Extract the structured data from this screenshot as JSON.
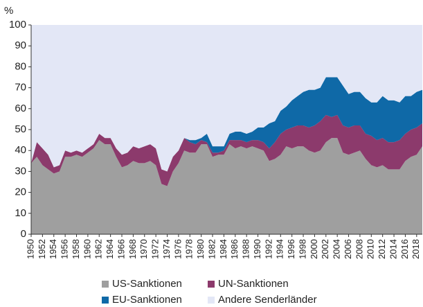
{
  "chart_data": {
    "type": "stacked_area",
    "y_label": "%",
    "x": [
      1950,
      1951,
      1952,
      1953,
      1954,
      1955,
      1956,
      1957,
      1958,
      1959,
      1960,
      1961,
      1962,
      1963,
      1964,
      1965,
      1966,
      1967,
      1968,
      1969,
      1970,
      1971,
      1972,
      1973,
      1974,
      1975,
      1976,
      1977,
      1978,
      1979,
      1980,
      1981,
      1982,
      1983,
      1984,
      1985,
      1986,
      1987,
      1988,
      1989,
      1990,
      1991,
      1992,
      1993,
      1994,
      1995,
      1996,
      1997,
      1998,
      1999,
      2000,
      2001,
      2002,
      2003,
      2004,
      2005,
      2006,
      2007,
      2008,
      2009,
      2010,
      2011,
      2012,
      2013,
      2014,
      2015,
      2016,
      2017,
      2018,
      2019
    ],
    "xlim": [
      1950,
      2019
    ],
    "xticks": [
      1950,
      1952,
      1954,
      1956,
      1958,
      1960,
      1962,
      1964,
      1966,
      1968,
      1970,
      1972,
      1974,
      1976,
      1978,
      1980,
      1982,
      1984,
      1986,
      1988,
      1990,
      1992,
      1994,
      1996,
      1998,
      2000,
      2002,
      2004,
      2006,
      2008,
      2010,
      2012,
      2014,
      2016,
      2018
    ],
    "ylim": [
      0,
      100
    ],
    "yticks": [
      0,
      10,
      20,
      30,
      40,
      50,
      60,
      70,
      80,
      90,
      100
    ],
    "grid": false,
    "legend": "bottom",
    "series": [
      {
        "name": "US-Sanktionen",
        "color": "#9f9f9f",
        "values": [
          34,
          37,
          33,
          31,
          29,
          30,
          37,
          37,
          38,
          37,
          39,
          41,
          45,
          43,
          43,
          37,
          32,
          33,
          35,
          34,
          34,
          35,
          33,
          24,
          23,
          30,
          34,
          40,
          39,
          39,
          43,
          43,
          37,
          38,
          38,
          43,
          41,
          42,
          41,
          42,
          41,
          40,
          35,
          36,
          38,
          42,
          41,
          42,
          42,
          40,
          39,
          40,
          44,
          46,
          46,
          39,
          38,
          39,
          40,
          36,
          33,
          32,
          33,
          31,
          31,
          31,
          35,
          37,
          38,
          42
        ]
      },
      {
        "name": "UN-Sanktionen",
        "color": "#8c3a6c",
        "values": [
          0,
          7,
          8,
          7,
          3,
          3,
          3,
          2,
          2,
          2,
          2,
          2,
          3,
          3,
          3,
          4,
          6,
          6,
          7,
          7,
          8,
          8,
          8,
          7,
          7,
          7,
          6,
          6,
          5,
          4,
          2,
          1,
          2,
          1,
          2,
          2,
          4,
          3,
          3,
          3,
          4,
          4,
          6,
          8,
          10,
          8,
          10,
          10,
          10,
          11,
          13,
          14,
          13,
          10,
          11,
          13,
          13,
          13,
          12,
          12,
          14,
          13,
          13,
          13,
          13,
          14,
          13,
          13,
          13,
          11
        ]
      },
      {
        "name": "EU-Sanktionen",
        "color": "#0f69a7",
        "values": [
          0,
          0,
          0,
          0,
          0,
          0,
          0,
          0,
          0,
          0,
          0,
          0,
          0,
          0,
          0,
          0,
          0,
          0,
          0,
          0,
          0,
          0,
          0,
          0,
          0,
          0,
          0,
          0,
          1,
          2,
          1,
          4,
          3,
          3,
          2,
          3,
          4,
          4,
          4,
          4,
          6,
          7,
          12,
          10,
          11,
          11,
          13,
          14,
          16,
          18,
          17,
          16,
          18,
          19,
          18,
          19,
          16,
          16,
          16,
          17,
          16,
          18,
          20,
          20,
          20,
          18,
          18,
          16,
          17,
          16
        ]
      },
      {
        "name": "Andere Senderländer",
        "color": "#e3e7f6",
        "values": [
          66,
          56,
          59,
          62,
          68,
          67,
          60,
          61,
          60,
          61,
          59,
          57,
          52,
          54,
          54,
          59,
          62,
          61,
          58,
          59,
          58,
          57,
          59,
          69,
          70,
          63,
          60,
          54,
          55,
          55,
          54,
          52,
          58,
          58,
          58,
          52,
          51,
          51,
          52,
          51,
          49,
          49,
          47,
          46,
          41,
          39,
          36,
          34,
          32,
          31,
          31,
          30,
          25,
          25,
          25,
          29,
          33,
          32,
          32,
          35,
          37,
          37,
          34,
          36,
          36,
          37,
          34,
          34,
          32,
          31
        ]
      }
    ]
  }
}
